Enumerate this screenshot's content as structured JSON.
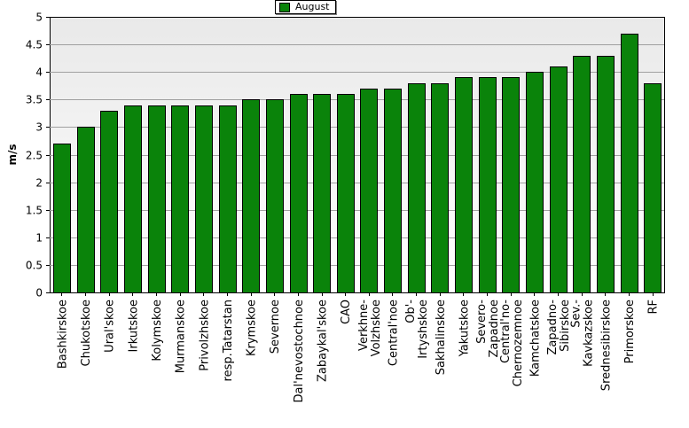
{
  "chart_data": {
    "type": "bar",
    "categories": [
      "Bashkirskoe",
      "Chukotskoe",
      "Ural'skoe",
      "Irkutskoe",
      "Kolymskoe",
      "Murmanskoe",
      "Privolzhskoe",
      "resp.Tatarstan",
      "Krymskoe",
      "Severnoe",
      "Dal'nevostochnoe",
      "Zabaykal'skoe",
      "CAO",
      "Verkhne-Volzhskoe",
      "Central'noe",
      "Ob'-Irtyshskoe",
      "Sakhalinskoe",
      "Yakutskoe",
      "Severo-Zapadnoe",
      "Central'no-Chernozemnoe",
      "Kamchatskoe",
      "Zapadno-Sibirskoe",
      "Sev.-Kavkazskoe",
      "Srednesibirskoe",
      "Primorskoe",
      "RF"
    ],
    "category_lines": [
      [
        "Bashkirskoe"
      ],
      [
        "Chukotskoe"
      ],
      [
        "Ural'skoe"
      ],
      [
        "Irkutskoe"
      ],
      [
        "Kolymskoe"
      ],
      [
        "Murmanskoe"
      ],
      [
        "Privolzhskoe"
      ],
      [
        "resp.Tatarstan"
      ],
      [
        "Krymskoe"
      ],
      [
        "Severnoe"
      ],
      [
        "Dal'nevostochnoe"
      ],
      [
        "Zabaykal'skoe"
      ],
      [
        "CAO"
      ],
      [
        "Verkhne-",
        "Volzhskoe"
      ],
      [
        "Central'noe"
      ],
      [
        "Ob'-",
        "Irtyshskoe"
      ],
      [
        "Sakhalinskoe"
      ],
      [
        "Yakutskoe"
      ],
      [
        "Severo-",
        "Zapadnoe"
      ],
      [
        "Central'no-",
        "Chernozemnoe"
      ],
      [
        "Kamchatskoe"
      ],
      [
        "Zapadno-",
        "Sibirskoe"
      ],
      [
        "Sev.-",
        "Kavkazskoe"
      ],
      [
        "Srednesibirskoe"
      ],
      [
        "Primorskoe"
      ],
      [
        "RF"
      ]
    ],
    "series": [
      {
        "name": "August",
        "values": [
          2.7,
          3.0,
          3.3,
          3.4,
          3.4,
          3.4,
          3.4,
          3.4,
          3.5,
          3.5,
          3.6,
          3.6,
          3.6,
          3.7,
          3.7,
          3.8,
          3.8,
          3.9,
          3.9,
          3.9,
          4.0,
          4.1,
          4.3,
          4.3,
          4.7,
          3.8
        ]
      }
    ],
    "title": "",
    "xlabel": "",
    "ylabel": "m/s",
    "ylim": [
      0,
      5
    ],
    "yticks": [
      "0",
      "0.5",
      "1",
      "1.5",
      "2",
      "2.5",
      "3",
      "3.5",
      "4",
      "4.5",
      "5"
    ],
    "grid": true,
    "legend_position": "top-center",
    "colors": {
      "bar": "#0a830a",
      "bar_edge": "#000000",
      "plot_bg_top": "#efefef",
      "plot_bg_bottom": "#ffffff",
      "grid": "#a0a0a0"
    }
  }
}
